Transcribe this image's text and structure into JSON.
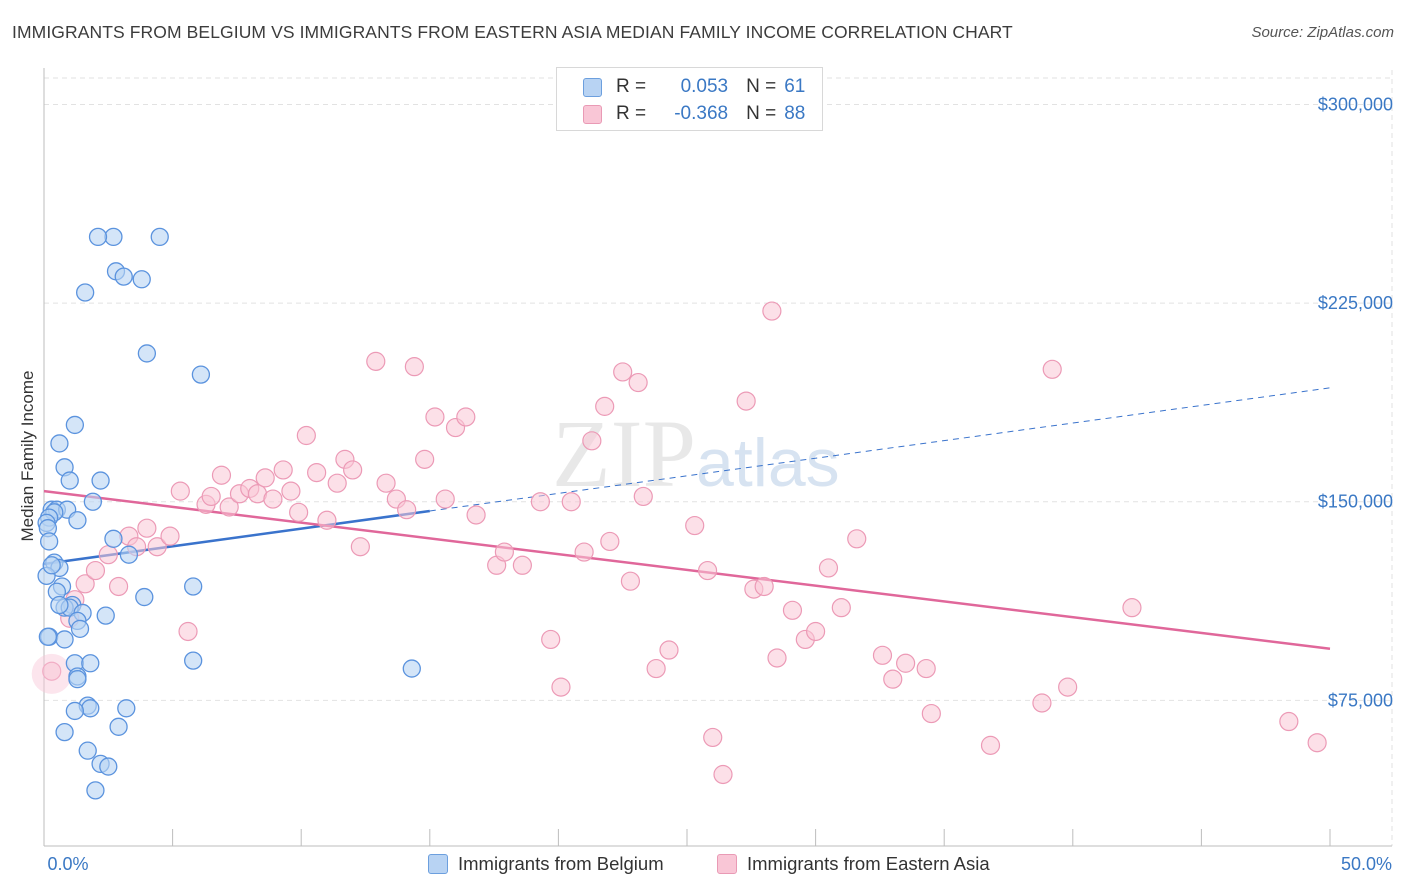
{
  "title": "IMMIGRANTS FROM BELGIUM VS IMMIGRANTS FROM EASTERN ASIA MEDIAN FAMILY INCOME CORRELATION CHART",
  "source": "Source: ZipAtlas.com",
  "watermark": {
    "zip": "ZIP",
    "atlas": "atlas"
  },
  "legend": {
    "r_label": "R =",
    "n_label": "N =",
    "rows": [
      {
        "r": "0.053",
        "n": "61",
        "fill": "#b8d3f3",
        "stroke": "#6c9fde"
      },
      {
        "r": "-0.368",
        "n": "88",
        "fill": "#f9c6d6",
        "stroke": "#e99ab5"
      }
    ]
  },
  "bottom_legend": [
    "Immigrants from Belgium",
    "Immigrants from Eastern Asia"
  ],
  "chart_data": {
    "type": "scatter",
    "xlabel": "",
    "ylabel": "Median Family Income",
    "xlim": [
      0,
      50
    ],
    "ylim": [
      20000,
      310000
    ],
    "x_tick_labels": [
      "0.0%",
      "50.0%"
    ],
    "y_ticks": [
      75000,
      150000,
      225000,
      300000
    ],
    "y_tick_labels": [
      "$75,000",
      "$150,000",
      "$225,000",
      "$300,000"
    ],
    "grid": true,
    "colors": {
      "belgium": "#5b93de",
      "belgium_line": "#3a73cc",
      "eastern_asia": "#f29ab6",
      "eastern_asia_line": "#e0679a",
      "tick_text": "#3a78c4"
    },
    "series": [
      {
        "name": "Immigrants from Belgium",
        "trend": {
          "x0": 0,
          "y0": 126500,
          "x1": 15,
          "y1": 146500,
          "dashed_to_x": 50,
          "dashed_to_y": 193000
        },
        "points": [
          [
            2.7,
            250000
          ],
          [
            2.1,
            250000
          ],
          [
            4.5,
            250000
          ],
          [
            2.8,
            237000
          ],
          [
            3.1,
            235000
          ],
          [
            3.8,
            234000
          ],
          [
            1.6,
            229000
          ],
          [
            4.0,
            206000
          ],
          [
            6.1,
            198000
          ],
          [
            1.2,
            179000
          ],
          [
            0.6,
            172000
          ],
          [
            0.8,
            163000
          ],
          [
            1.0,
            158000
          ],
          [
            2.2,
            158000
          ],
          [
            1.9,
            150000
          ],
          [
            0.3,
            147000
          ],
          [
            0.5,
            147000
          ],
          [
            0.9,
            147000
          ],
          [
            0.4,
            146000
          ],
          [
            0.2,
            144000
          ],
          [
            1.3,
            143000
          ],
          [
            0.1,
            142000
          ],
          [
            0.15,
            140000
          ],
          [
            0.2,
            135000
          ],
          [
            2.7,
            136000
          ],
          [
            3.3,
            130000
          ],
          [
            0.4,
            127000
          ],
          [
            0.6,
            125000
          ],
          [
            0.1,
            122000
          ],
          [
            5.8,
            118000
          ],
          [
            0.7,
            118000
          ],
          [
            0.5,
            116000
          ],
          [
            3.9,
            114000
          ],
          [
            1.1,
            111000
          ],
          [
            0.8,
            110000
          ],
          [
            1.0,
            110000
          ],
          [
            1.5,
            108000
          ],
          [
            1.3,
            105000
          ],
          [
            2.4,
            107000
          ],
          [
            1.4,
            102000
          ],
          [
            0.2,
            99000
          ],
          [
            0.8,
            98000
          ],
          [
            1.2,
            89000
          ],
          [
            1.8,
            89000
          ],
          [
            5.8,
            90000
          ],
          [
            14.3,
            87000
          ],
          [
            1.3,
            84000
          ],
          [
            1.3,
            83000
          ],
          [
            3.2,
            72000
          ],
          [
            1.7,
            73000
          ],
          [
            1.8,
            72000
          ],
          [
            1.2,
            71000
          ],
          [
            2.9,
            65000
          ],
          [
            0.8,
            63000
          ],
          [
            1.7,
            56000
          ],
          [
            2.2,
            51000
          ],
          [
            2.5,
            50000
          ],
          [
            2.0,
            41000
          ],
          [
            0.15,
            99000
          ],
          [
            0.3,
            126000
          ],
          [
            0.6,
            111000
          ]
        ]
      },
      {
        "name": "Immigrants from Eastern Asia",
        "trend": {
          "x0": 0,
          "y0": 154000,
          "x1": 50,
          "y1": 94500
        },
        "points": [
          [
            0.3,
            86000
          ],
          [
            1.0,
            106000
          ],
          [
            1.2,
            113000
          ],
          [
            1.6,
            119000
          ],
          [
            2.0,
            124000
          ],
          [
            2.5,
            130000
          ],
          [
            2.9,
            118000
          ],
          [
            3.3,
            137000
          ],
          [
            3.6,
            133000
          ],
          [
            4.0,
            140000
          ],
          [
            4.4,
            133000
          ],
          [
            4.9,
            137000
          ],
          [
            5.3,
            154000
          ],
          [
            5.6,
            101000
          ],
          [
            6.3,
            149000
          ],
          [
            6.5,
            152000
          ],
          [
            6.9,
            160000
          ],
          [
            7.2,
            148000
          ],
          [
            7.6,
            153000
          ],
          [
            8.0,
            155000
          ],
          [
            8.3,
            153000
          ],
          [
            8.6,
            159000
          ],
          [
            8.9,
            151000
          ],
          [
            9.3,
            162000
          ],
          [
            9.6,
            154000
          ],
          [
            9.9,
            146000
          ],
          [
            10.2,
            175000
          ],
          [
            10.6,
            161000
          ],
          [
            11.0,
            143000
          ],
          [
            11.4,
            157000
          ],
          [
            11.7,
            166000
          ],
          [
            12.0,
            162000
          ],
          [
            12.3,
            133000
          ],
          [
            12.9,
            203000
          ],
          [
            13.3,
            157000
          ],
          [
            13.7,
            151000
          ],
          [
            14.1,
            147000
          ],
          [
            14.4,
            201000
          ],
          [
            14.8,
            166000
          ],
          [
            15.2,
            182000
          ],
          [
            15.6,
            151000
          ],
          [
            16.0,
            178000
          ],
          [
            16.4,
            182000
          ],
          [
            16.8,
            145000
          ],
          [
            17.6,
            126000
          ],
          [
            17.9,
            131000
          ],
          [
            18.6,
            126000
          ],
          [
            19.3,
            150000
          ],
          [
            19.7,
            98000
          ],
          [
            20.1,
            80000
          ],
          [
            20.5,
            150000
          ],
          [
            21.0,
            131000
          ],
          [
            21.3,
            173000
          ],
          [
            21.8,
            186000
          ],
          [
            22.0,
            135000
          ],
          [
            22.5,
            199000
          ],
          [
            22.8,
            120000
          ],
          [
            23.1,
            195000
          ],
          [
            23.3,
            152000
          ],
          [
            23.8,
            87000
          ],
          [
            24.3,
            94000
          ],
          [
            25.3,
            141000
          ],
          [
            25.8,
            124000
          ],
          [
            26.0,
            61000
          ],
          [
            26.4,
            47000
          ],
          [
            27.3,
            188000
          ],
          [
            27.6,
            117000
          ],
          [
            28.0,
            118000
          ],
          [
            28.3,
            222000
          ],
          [
            28.5,
            91000
          ],
          [
            29.1,
            109000
          ],
          [
            29.6,
            98000
          ],
          [
            30.0,
            101000
          ],
          [
            30.5,
            125000
          ],
          [
            31.0,
            110000
          ],
          [
            31.6,
            136000
          ],
          [
            32.6,
            92000
          ],
          [
            33.0,
            83000
          ],
          [
            33.5,
            89000
          ],
          [
            34.3,
            87000
          ],
          [
            34.5,
            70000
          ],
          [
            36.8,
            58000
          ],
          [
            38.8,
            74000
          ],
          [
            39.2,
            200000
          ],
          [
            39.8,
            80000
          ],
          [
            42.3,
            110000
          ],
          [
            48.4,
            67000
          ],
          [
            49.5,
            59000
          ]
        ]
      }
    ]
  }
}
